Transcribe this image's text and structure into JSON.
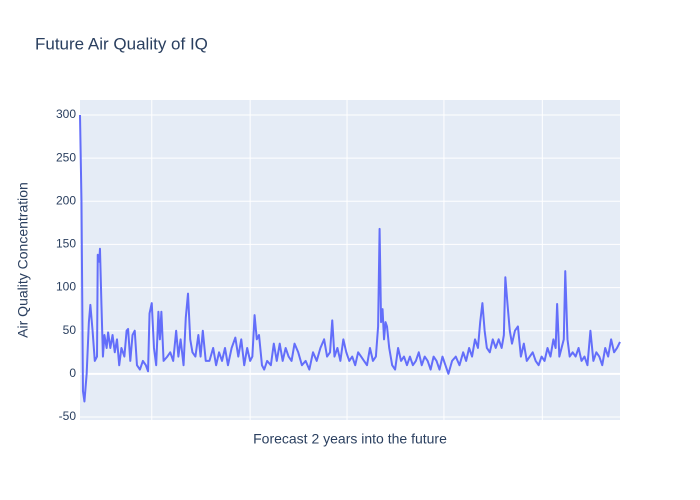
{
  "chart_data": {
    "type": "line",
    "title": "Future Air Quality of IQ",
    "x_label": "Forecast 2 years into the future",
    "y_label": "Air Quality Concentration",
    "xlim": [
      0,
      730
    ],
    "xticks": [
      97,
      230,
      361,
      492,
      625
    ],
    "ylim": [
      -50,
      300
    ],
    "yticks": [
      -50,
      0,
      50,
      100,
      150,
      200,
      250,
      300
    ],
    "grid": true,
    "series": [
      {
        "name": "Air Quality Concentration",
        "color": "#636efa",
        "x": [
          0,
          2,
          4,
          6,
          9,
          12,
          14,
          17,
          20,
          23,
          24,
          26,
          27,
          29,
          31,
          33,
          36,
          38,
          41,
          44,
          47,
          50,
          53,
          56,
          60,
          63,
          65,
          68,
          71,
          74,
          77,
          81,
          85,
          89,
          92,
          94,
          97,
          100,
          103,
          106,
          108,
          110,
          113,
          118,
          122,
          126,
          130,
          133,
          136,
          140,
          143,
          146,
          149,
          152,
          156,
          160,
          163,
          166,
          170,
          175,
          180,
          184,
          188,
          192,
          196,
          200,
          205,
          210,
          214,
          218,
          222,
          226,
          230,
          233,
          236,
          239,
          242,
          246,
          249,
          253,
          258,
          262,
          266,
          270,
          274,
          278,
          282,
          286,
          290,
          295,
          300,
          305,
          310,
          315,
          320,
          325,
          330,
          334,
          338,
          341,
          344,
          348,
          352,
          356,
          360,
          364,
          368,
          372,
          376,
          380,
          384,
          388,
          392,
          396,
          400,
          403,
          405,
          407,
          409,
          411,
          413,
          415,
          418,
          422,
          426,
          430,
          434,
          438,
          442,
          446,
          450,
          454,
          458,
          462,
          466,
          470,
          474,
          478,
          482,
          486,
          490,
          494,
          498,
          503,
          508,
          513,
          518,
          522,
          526,
          530,
          534,
          538,
          541,
          544,
          547,
          550,
          554,
          558,
          562,
          566,
          570,
          573,
          575,
          578,
          581,
          584,
          588,
          592,
          596,
          600,
          604,
          608,
          612,
          616,
          620,
          624,
          628,
          632,
          636,
          640,
          643,
          645,
          648,
          651,
          654,
          656,
          659,
          662,
          666,
          670,
          674,
          678,
          682,
          686,
          690,
          694,
          698,
          702,
          706,
          710,
          714,
          718,
          722,
          726,
          730
        ],
        "values": [
          300,
          200,
          -20,
          -32,
          0,
          60,
          80,
          50,
          15,
          20,
          138,
          130,
          145,
          80,
          20,
          45,
          30,
          48,
          30,
          45,
          25,
          40,
          10,
          30,
          20,
          50,
          52,
          15,
          45,
          50,
          10,
          5,
          15,
          10,
          3,
          70,
          82,
          30,
          10,
          72,
          40,
          72,
          15,
          20,
          25,
          15,
          50,
          20,
          40,
          10,
          65,
          93,
          40,
          25,
          20,
          45,
          20,
          50,
          15,
          15,
          30,
          10,
          25,
          15,
          30,
          10,
          30,
          42,
          20,
          40,
          10,
          30,
          15,
          20,
          68,
          40,
          45,
          10,
          5,
          15,
          10,
          35,
          15,
          35,
          15,
          30,
          20,
          15,
          35,
          25,
          10,
          15,
          5,
          25,
          15,
          30,
          40,
          20,
          25,
          62,
          20,
          30,
          15,
          40,
          25,
          15,
          20,
          10,
          25,
          20,
          15,
          10,
          30,
          15,
          20,
          55,
          168,
          60,
          75,
          40,
          60,
          55,
          30,
          10,
          5,
          30,
          15,
          20,
          10,
          20,
          10,
          15,
          25,
          10,
          20,
          15,
          5,
          20,
          15,
          5,
          20,
          10,
          0,
          15,
          20,
          10,
          25,
          15,
          30,
          20,
          40,
          30,
          60,
          82,
          50,
          30,
          25,
          40,
          30,
          40,
          30,
          45,
          112,
          80,
          50,
          35,
          50,
          55,
          20,
          35,
          15,
          20,
          25,
          15,
          10,
          20,
          15,
          30,
          20,
          40,
          30,
          81,
          20,
          30,
          40,
          119,
          40,
          20,
          25,
          20,
          30,
          15,
          20,
          10,
          50,
          15,
          25,
          20,
          10,
          30,
          20,
          40,
          25,
          30,
          37
        ]
      }
    ]
  }
}
